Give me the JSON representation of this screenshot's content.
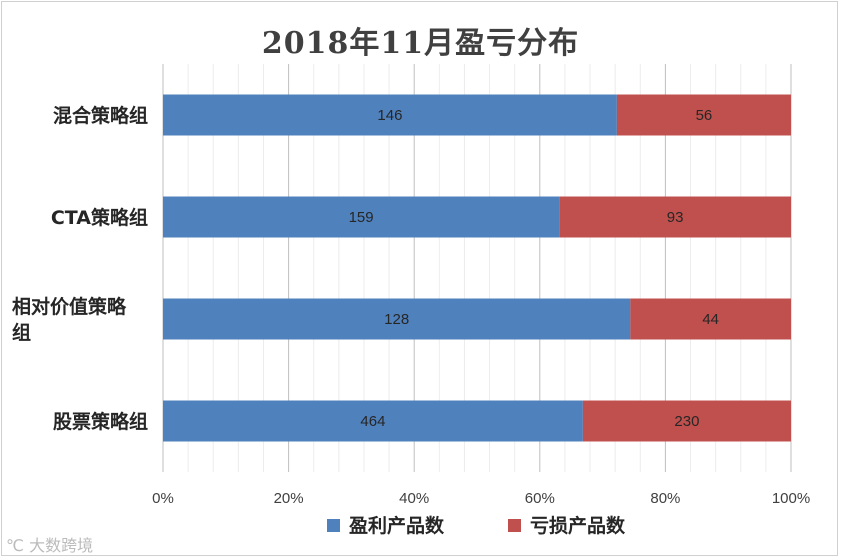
{
  "chart_data": {
    "type": "bar",
    "orientation": "horizontal",
    "stacked": "percent",
    "title": "2018年11月盈亏分布",
    "categories": [
      "混合策略组",
      "CTA策略组",
      "相对价值策略组",
      "股票策略组"
    ],
    "series": [
      {
        "name": "盈利产品数",
        "values": [
          146,
          159,
          128,
          464
        ],
        "color": "#4f81bd"
      },
      {
        "name": "亏损产品数",
        "values": [
          56,
          93,
          44,
          230
        ],
        "color": "#c0504d"
      }
    ],
    "xlim": [
      0,
      100
    ],
    "x_ticks": [
      "0%",
      "20%",
      "40%",
      "60%",
      "80%",
      "100%"
    ],
    "grid": true,
    "legend": "bottom"
  },
  "watermark": "大数跨境"
}
